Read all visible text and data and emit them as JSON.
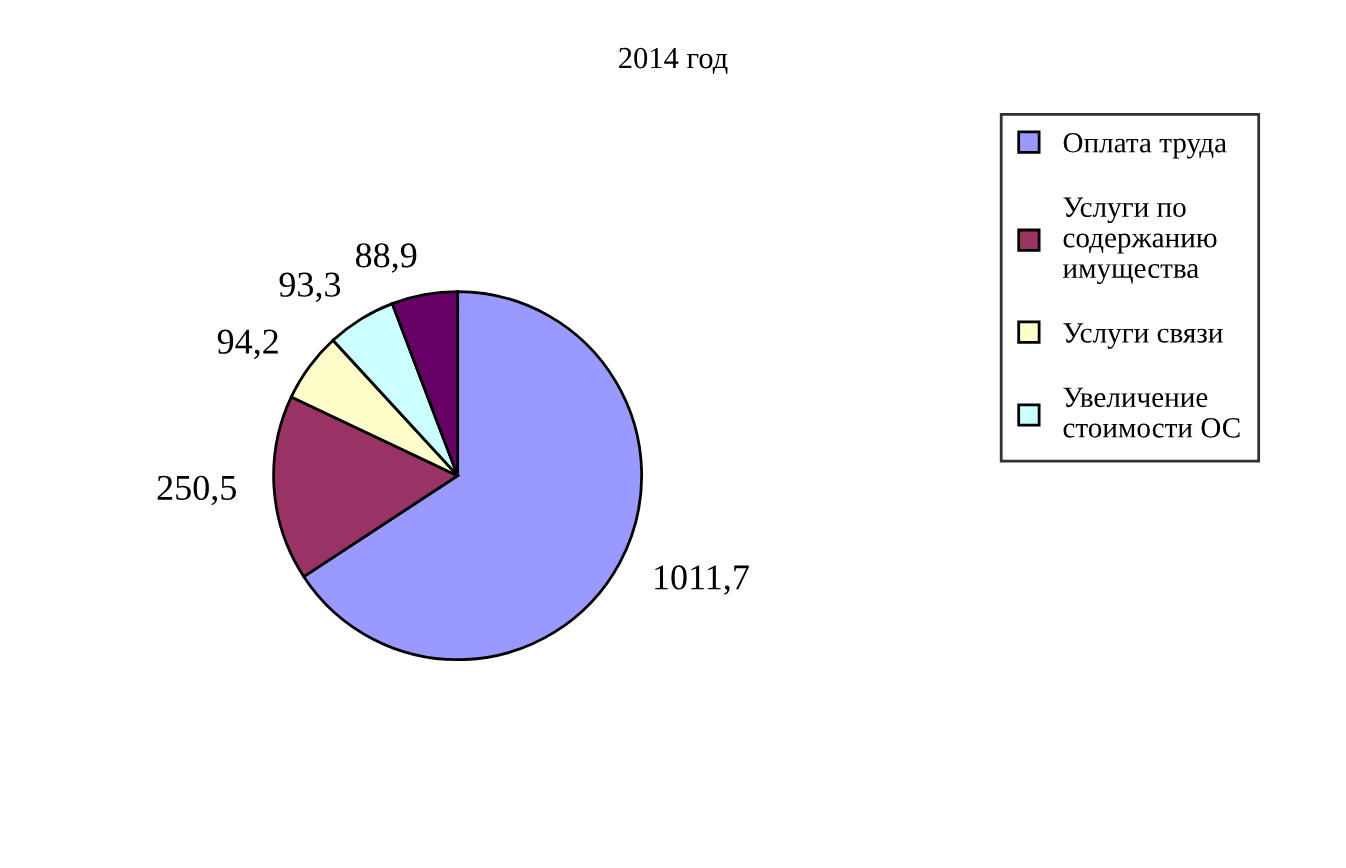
{
  "chart_data": {
    "type": "pie",
    "title": "2014 год",
    "categories": [
      "Оплата труда",
      "Услуги по\nсодержанию\nимущества",
      "Услуги связи",
      "Увеличение\nстоимости ОС",
      null
    ],
    "values": [
      1011.7,
      250.5,
      94.2,
      93.3,
      88.9
    ],
    "value_labels": [
      "1011,7",
      "250,5",
      "94,2",
      "93,3",
      "88,9"
    ],
    "colors": [
      "#9999ff",
      "#993366",
      "#ffffcc",
      "#ccffff",
      "#660066"
    ],
    "legend": "right"
  }
}
